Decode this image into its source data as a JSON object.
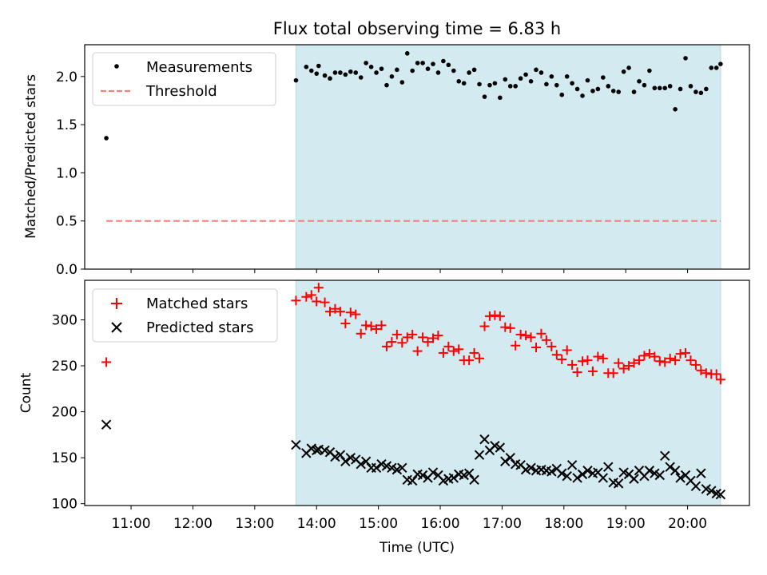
{
  "chart_data": [
    {
      "type": "scatter",
      "title": "Flux total observing time = 6.83 h",
      "xlabel": "",
      "ylabel": "Matched/Predicted stars",
      "ylim": [
        0,
        2.33
      ],
      "yticks": [
        "0.0",
        "0.5",
        "1.0",
        "1.5",
        "2.0"
      ],
      "ytick_values": [
        0,
        0.5,
        1.0,
        1.5,
        2.0
      ],
      "xlim": [
        "10:15",
        "21:00"
      ],
      "shaded_span": [
        "13:40",
        "20:32"
      ],
      "shade_color": "#d3eaf1",
      "legend": {
        "placement": "upper left",
        "entries": [
          "Measurements",
          "Threshold"
        ]
      },
      "series": [
        {
          "name": "Measurements",
          "marker": "dot",
          "color": "#000000",
          "x": [
            "10:36",
            "13:40",
            "13:50",
            "13:55",
            "14:00",
            "14:02",
            "14:08",
            "14:13",
            "14:18",
            "14:23",
            "14:28",
            "14:33",
            "14:38",
            "14:43",
            "14:48",
            "14:53",
            "14:58",
            "15:03",
            "15:08",
            "15:13",
            "15:18",
            "15:23",
            "15:28",
            "15:33",
            "15:38",
            "15:43",
            "15:48",
            "15:53",
            "15:58",
            "16:03",
            "16:08",
            "16:13",
            "16:18",
            "16:23",
            "16:28",
            "16:33",
            "16:38",
            "16:43",
            "16:48",
            "16:53",
            "16:58",
            "17:03",
            "17:08",
            "17:13",
            "17:18",
            "17:23",
            "17:28",
            "17:33",
            "17:38",
            "17:43",
            "17:48",
            "17:53",
            "17:58",
            "18:03",
            "18:08",
            "18:13",
            "18:18",
            "18:23",
            "18:28",
            "18:33",
            "18:38",
            "18:43",
            "18:48",
            "18:53",
            "18:58",
            "19:03",
            "19:08",
            "19:13",
            "19:18",
            "19:23",
            "19:28",
            "19:33",
            "19:38",
            "19:43",
            "19:48",
            "19:53",
            "19:58",
            "20:03",
            "20:08",
            "20:13",
            "20:18",
            "20:23",
            "20:28",
            "20:32"
          ],
          "y": [
            1.36,
            1.96,
            2.1,
            2.06,
            2.03,
            2.11,
            2.01,
            1.98,
            2.04,
            2.04,
            2.02,
            2.05,
            2.04,
            1.99,
            2.14,
            2.1,
            2.04,
            2.08,
            1.91,
            2.0,
            2.07,
            1.94,
            2.24,
            2.06,
            2.14,
            2.14,
            2.08,
            2.13,
            2.04,
            2.16,
            2.12,
            2.06,
            1.95,
            1.93,
            2.04,
            2.07,
            1.92,
            1.79,
            1.91,
            1.93,
            1.78,
            1.97,
            1.9,
            1.9,
            1.98,
            2.02,
            1.95,
            2.07,
            2.04,
            1.92,
            2.0,
            1.91,
            1.81,
            2.0,
            1.93,
            1.87,
            1.8,
            1.96,
            1.85,
            1.87,
            1.99,
            1.9,
            1.85,
            1.84,
            2.05,
            2.09,
            1.84,
            1.95,
            1.91,
            2.06,
            1.88,
            1.88,
            1.88,
            1.9,
            1.66,
            1.87,
            2.19,
            1.9,
            1.84,
            1.83,
            1.87,
            2.09,
            2.09,
            2.13
          ]
        },
        {
          "name": "Threshold",
          "marker": "dashed-line",
          "color": "#f08080",
          "x": [
            "10:36",
            "20:32"
          ],
          "y": [
            0.5,
            0.5
          ]
        }
      ]
    },
    {
      "type": "scatter",
      "title": "",
      "xlabel": "Time (UTC)",
      "ylabel": "Count",
      "ylim": [
        98,
        343
      ],
      "yticks": [
        "100",
        "150",
        "200",
        "250",
        "300"
      ],
      "ytick_values": [
        100,
        150,
        200,
        250,
        300
      ],
      "xlim": [
        "10:15",
        "21:00"
      ],
      "xticks": [
        "11:00",
        "12:00",
        "13:00",
        "14:00",
        "15:00",
        "16:00",
        "17:00",
        "18:00",
        "19:00",
        "20:00"
      ],
      "shaded_span": [
        "13:40",
        "20:32"
      ],
      "shade_color": "#d3eaf1",
      "legend": {
        "placement": "upper left",
        "entries": [
          "Matched stars",
          "Predicted stars"
        ]
      },
      "series": [
        {
          "name": "Matched stars",
          "marker": "plus",
          "color": "#ff0000",
          "x": [
            "10:36",
            "13:40",
            "13:50",
            "13:55",
            "14:00",
            "14:02",
            "14:08",
            "14:13",
            "14:18",
            "14:23",
            "14:28",
            "14:33",
            "14:38",
            "14:43",
            "14:48",
            "14:53",
            "14:58",
            "15:03",
            "15:08",
            "15:13",
            "15:18",
            "15:23",
            "15:28",
            "15:33",
            "15:38",
            "15:43",
            "15:48",
            "15:53",
            "15:58",
            "16:03",
            "16:08",
            "16:13",
            "16:18",
            "16:23",
            "16:28",
            "16:33",
            "16:38",
            "16:43",
            "16:48",
            "16:53",
            "16:58",
            "17:03",
            "17:08",
            "17:13",
            "17:18",
            "17:23",
            "17:28",
            "17:33",
            "17:38",
            "17:43",
            "17:48",
            "17:53",
            "17:58",
            "18:03",
            "18:08",
            "18:13",
            "18:18",
            "18:23",
            "18:28",
            "18:33",
            "18:38",
            "18:43",
            "18:48",
            "18:53",
            "18:58",
            "19:03",
            "19:08",
            "19:13",
            "19:18",
            "19:23",
            "19:28",
            "19:33",
            "19:38",
            "19:43",
            "19:48",
            "19:53",
            "19:58",
            "20:03",
            "20:08",
            "20:13",
            "20:18",
            "20:23",
            "20:28",
            "20:32"
          ],
          "y": [
            254,
            321,
            325,
            327,
            320,
            335,
            319,
            309,
            312,
            309,
            296,
            308,
            306,
            285,
            294,
            293,
            290,
            294,
            271,
            276,
            284,
            275,
            281,
            284,
            266,
            281,
            276,
            280,
            283,
            264,
            271,
            266,
            268,
            256,
            256,
            264,
            258,
            293,
            304,
            305,
            304,
            292,
            291,
            272,
            284,
            283,
            281,
            270,
            285,
            278,
            271,
            262,
            257,
            267,
            251,
            243,
            255,
            256,
            244,
            260,
            258,
            242,
            242,
            253,
            247,
            250,
            253,
            256,
            261,
            263,
            260,
            255,
            254,
            258,
            256,
            263,
            264,
            256,
            251,
            245,
            242,
            241,
            241,
            235
          ]
        },
        {
          "name": "Predicted stars",
          "marker": "x",
          "color": "#000000",
          "x": [
            "10:36",
            "13:40",
            "13:50",
            "13:55",
            "14:00",
            "14:02",
            "14:08",
            "14:13",
            "14:18",
            "14:23",
            "14:28",
            "14:33",
            "14:38",
            "14:43",
            "14:48",
            "14:53",
            "14:58",
            "15:03",
            "15:08",
            "15:13",
            "15:18",
            "15:23",
            "15:28",
            "15:33",
            "15:38",
            "15:43",
            "15:48",
            "15:53",
            "15:58",
            "16:03",
            "16:08",
            "16:13",
            "16:18",
            "16:23",
            "16:28",
            "16:33",
            "16:38",
            "16:43",
            "16:48",
            "16:53",
            "16:58",
            "17:03",
            "17:08",
            "17:13",
            "17:18",
            "17:23",
            "17:28",
            "17:33",
            "17:38",
            "17:43",
            "17:48",
            "17:53",
            "17:58",
            "18:03",
            "18:08",
            "18:13",
            "18:18",
            "18:23",
            "18:28",
            "18:33",
            "18:38",
            "18:43",
            "18:48",
            "18:53",
            "18:58",
            "19:03",
            "19:08",
            "19:13",
            "19:18",
            "19:23",
            "19:28",
            "19:33",
            "19:38",
            "19:43",
            "19:48",
            "19:53",
            "19:58",
            "20:03",
            "20:08",
            "20:13",
            "20:18",
            "20:23",
            "20:28",
            "20:32"
          ],
          "y": [
            186,
            164,
            155,
            160,
            158,
            159,
            158,
            156,
            151,
            153,
            146,
            150,
            148,
            143,
            146,
            139,
            139,
            143,
            141,
            139,
            137,
            139,
            126,
            125,
            132,
            131,
            128,
            134,
            131,
            125,
            127,
            128,
            132,
            131,
            133,
            126,
            153,
            170,
            158,
            163,
            161,
            146,
            150,
            143,
            142,
            137,
            139,
            136,
            137,
            136,
            135,
            138,
            133,
            130,
            142,
            128,
            132,
            136,
            133,
            134,
            128,
            140,
            123,
            122,
            134,
            132,
            127,
            136,
            130,
            136,
            133,
            131,
            152,
            140,
            136,
            128,
            131,
            125,
            119,
            133,
            116,
            114,
            111,
            110
          ]
        }
      ]
    }
  ]
}
